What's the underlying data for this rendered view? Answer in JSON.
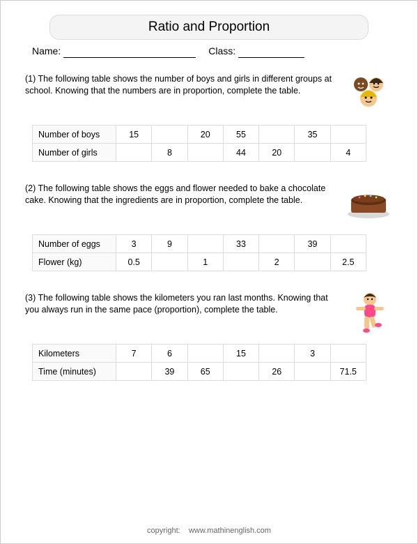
{
  "title": "Ratio and Proportion",
  "header": {
    "name_label": "Name:",
    "class_label": "Class:"
  },
  "problems": [
    {
      "num": "(1)",
      "text": "The following table shows the number of boys and girls in different groups at school. Knowing that the numbers are in proportion, complete the table.",
      "icon": "kids",
      "rows": [
        {
          "label": "Number of boys",
          "cells": [
            "15",
            "",
            "20",
            "55",
            "",
            "35",
            ""
          ]
        },
        {
          "label": "Number of girls",
          "cells": [
            "",
            "8",
            "",
            "44",
            "20",
            "",
            "4"
          ]
        }
      ]
    },
    {
      "num": "(2)",
      "text": "The following table shows the eggs and flower needed to bake a chocolate cake. Knowing that the ingredients are in proportion, complete the table.",
      "icon": "cake",
      "rows": [
        {
          "label": "Number of eggs",
          "cells": [
            "3",
            "9",
            "",
            "33",
            "",
            "39",
            ""
          ]
        },
        {
          "label": "Flower (kg)",
          "cells": [
            "0.5",
            "",
            "1",
            "",
            "2",
            "",
            "2.5"
          ]
        }
      ]
    },
    {
      "num": "(3)",
      "text": "The following table shows the kilometers you ran last months. Knowing that you always run in the same pace (proportion), complete the table.",
      "icon": "runner",
      "rows": [
        {
          "label": "Kilometers",
          "cells": [
            "7",
            "6",
            "",
            "15",
            "",
            "3",
            ""
          ]
        },
        {
          "label": "Time (minutes)",
          "cells": [
            "",
            "39",
            "65",
            "",
            "26",
            "",
            "71.5"
          ]
        }
      ]
    }
  ],
  "footer": {
    "copyright": "copyright:",
    "site": "www.mathinenglish.com"
  },
  "colors": {
    "table_border": "#dcdcdc",
    "label_bg": "#fafafa",
    "title_bg": "#f4f4f4"
  }
}
